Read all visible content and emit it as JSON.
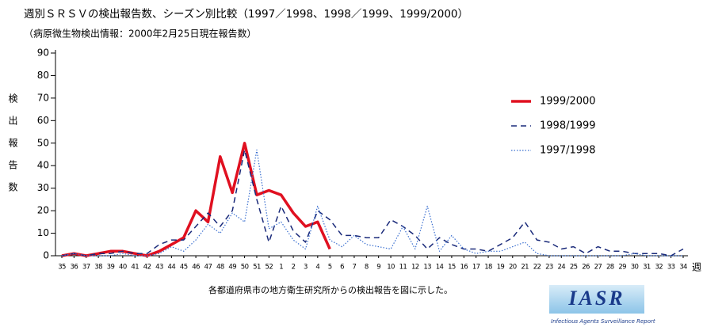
{
  "chart_data": {
    "type": "line",
    "title": "週別ＳＲＳＶの検出報告数、シーズン別比較（1997／1998、1998／1999、1999/2000）",
    "subtitle": "（病原微生物検出情報：2000年2月25日現在報告数）",
    "y_label": "検出報告数",
    "x_label": "週",
    "note": "各都道府県市の地方衛生研究所からの検出報告を図に示した。",
    "logo": "IASR",
    "logo_caption": "Infectious Agents Surveillance Report",
    "categories": [
      "35",
      "36",
      "37",
      "38",
      "39",
      "40",
      "41",
      "42",
      "43",
      "44",
      "45",
      "46",
      "47",
      "48",
      "49",
      "50",
      "51",
      "52",
      "1",
      "2",
      "3",
      "4",
      "5",
      "6",
      "7",
      "8",
      "9",
      "10",
      "11",
      "12",
      "13",
      "14",
      "15",
      "16",
      "17",
      "18",
      "19",
      "20",
      "21",
      "22",
      "23",
      "24",
      "25",
      "26",
      "27",
      "28",
      "29",
      "30",
      "31",
      "32",
      "33",
      "34"
    ],
    "series": [
      {
        "name": "1999/2000",
        "color": "#e01020",
        "linestyle": "solid",
        "values": [
          0,
          1,
          0,
          1,
          2,
          2,
          1,
          0,
          2,
          5,
          8,
          20,
          15,
          44,
          28,
          50,
          27,
          29,
          27,
          19,
          13,
          15,
          3,
          null,
          null,
          null,
          null,
          null,
          null,
          null,
          null,
          null,
          null,
          null,
          null,
          null,
          null,
          null,
          null,
          null,
          null,
          null,
          null,
          null,
          null,
          null,
          null,
          null,
          null,
          null,
          null,
          null
        ]
      },
      {
        "name": "1998/1999",
        "color": "#1a2a7a",
        "linestyle": "dashed",
        "values": [
          0,
          1,
          0,
          1,
          1,
          2,
          1,
          1,
          5,
          7,
          7,
          13,
          19,
          13,
          20,
          47,
          25,
          6,
          22,
          11,
          6,
          20,
          16,
          9,
          9,
          8,
          8,
          16,
          13,
          9,
          3,
          8,
          5,
          3,
          3,
          2,
          5,
          8,
          15,
          7,
          6,
          3,
          4,
          1,
          4,
          2,
          2,
          1,
          1,
          1,
          0,
          3
        ]
      },
      {
        "name": "1997/1998",
        "color": "#3a6fd0",
        "linestyle": "dotted",
        "values": [
          0,
          1,
          0,
          0,
          0,
          1,
          0,
          0,
          1,
          4,
          2,
          7,
          14,
          10,
          19,
          15,
          47,
          12,
          15,
          7,
          3,
          22,
          7,
          4,
          9,
          5,
          4,
          3,
          13,
          3,
          22,
          2,
          9,
          3,
          1,
          2,
          2,
          4,
          6,
          1,
          0,
          0,
          0,
          0,
          0,
          0,
          0,
          1,
          0,
          0,
          0,
          0
        ]
      }
    ],
    "ylim": [
      0,
      90
    ],
    "yticks": [
      0,
      10,
      20,
      30,
      40,
      50,
      60,
      70,
      80,
      90
    ],
    "grid": false,
    "legend": "upper right"
  }
}
